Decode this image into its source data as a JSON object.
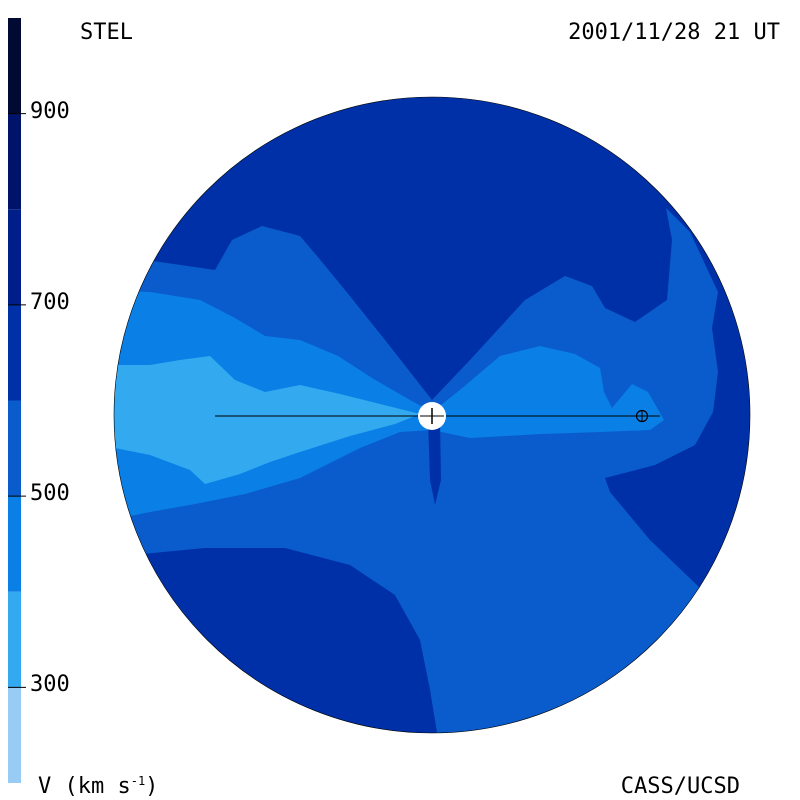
{
  "header": {
    "observatory": "STEL",
    "datetime": "2001/11/28 21 UT"
  },
  "footer": {
    "credit": "CASS/UCSD",
    "unit_label": "V (km s",
    "unit_exponent": "-1",
    "unit_suffix": ")"
  },
  "colorbar": {
    "ticks": [
      "900",
      "700",
      "500",
      "300"
    ],
    "levels": [
      {
        "min": 200,
        "max": 300,
        "color": "#99ccf5"
      },
      {
        "min": 300,
        "max": 400,
        "color": "#33aaf0"
      },
      {
        "min": 400,
        "max": 500,
        "color": "#0a80e6"
      },
      {
        "min": 500,
        "max": 600,
        "color": "#0a5ccc"
      },
      {
        "min": 600,
        "max": 700,
        "color": "#0030a8"
      },
      {
        "min": 700,
        "max": 800,
        "color": "#001e8a"
      },
      {
        "min": 800,
        "max": 900,
        "color": "#00136b"
      },
      {
        "min": 900,
        "max": 1000,
        "color": "#000a33"
      }
    ]
  },
  "colors": {
    "background": "#ffffff",
    "disk_outline": "#000000",
    "sun": "#ffffff"
  },
  "icons": {
    "sun": "sun-icon",
    "earth": "earth-icon"
  }
}
